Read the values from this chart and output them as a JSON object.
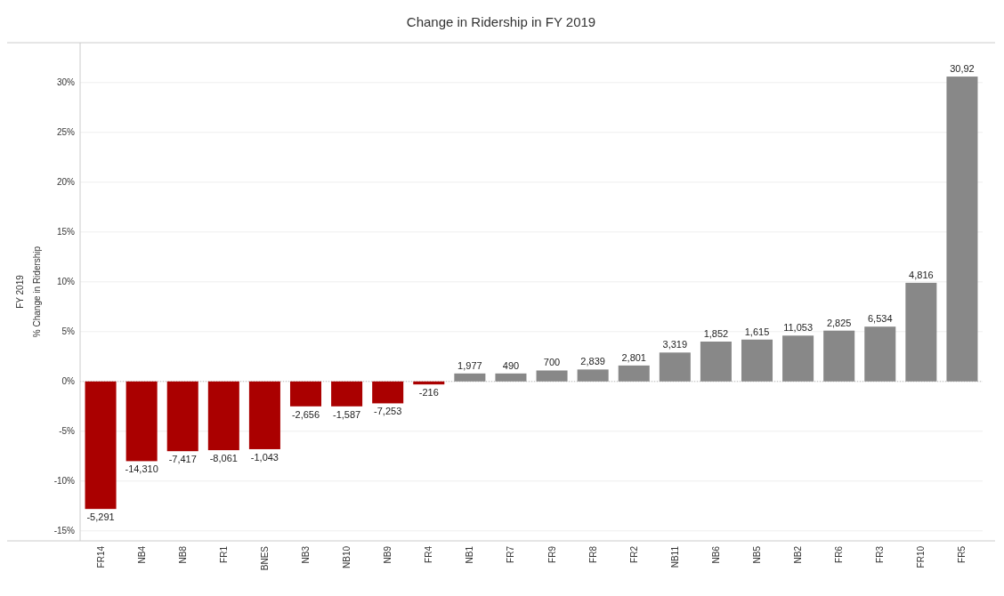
{
  "chart_data": {
    "type": "bar",
    "title": "Change in Ridership in FY 2019",
    "ylabel": "FY 2019\n% Change in Ridership",
    "categories": [
      "FR14",
      "NB4",
      "NB8",
      "FR1",
      "BNES",
      "NB3",
      "NB10",
      "NB9",
      "FR4",
      "NB1",
      "FR7",
      "FR9",
      "FR8",
      "FR2",
      "NB11",
      "NB6",
      "NB5",
      "NB2",
      "FR6",
      "FR3",
      "FR10",
      "FR5"
    ],
    "values": [
      -12.8,
      -8.0,
      -7.0,
      -6.9,
      -6.8,
      -2.5,
      -2.5,
      -2.2,
      -0.3,
      0.8,
      0.8,
      1.1,
      1.2,
      1.6,
      2.9,
      4.0,
      4.2,
      4.6,
      5.1,
      5.5,
      9.9,
      30.6
    ],
    "colors": [
      "#aa0000",
      "#aa0000",
      "#aa0000",
      "#aa0000",
      "#aa0000",
      "#aa0000",
      "#aa0000",
      "#aa0000",
      "#aa0000",
      "#888888",
      "#888888",
      "#888888",
      "#888888",
      "#888888",
      "#888888",
      "#888888",
      "#888888",
      "#888888",
      "#888888",
      "#888888",
      "#888888",
      "#888888"
    ],
    "annotations": [
      {
        "text": "-5,291",
        "x": "FR14",
        "y": -12.8
      },
      {
        "text": "-14,310",
        "x": "NB4",
        "y": -8.0
      },
      {
        "text": "-7,417",
        "x": "NB8",
        "y": -7.0
      },
      {
        "text": "-8,061",
        "x": "FR1",
        "y": -6.9
      },
      {
        "text": "-1,043",
        "x": "BNES",
        "y": -6.8
      },
      {
        "text": "-2,656",
        "x": "NB3",
        "y": -2.5
      },
      {
        "text": "-1,587",
        "x": "NB10",
        "y": -2.5
      },
      {
        "text": "-7,253",
        "x": "NB9",
        "y": -2.2
      },
      {
        "text": "-216",
        "x": "FR4",
        "y": -0.3
      },
      {
        "text": "1,977",
        "x": "NB1",
        "y": 0.8
      },
      {
        "text": "490",
        "x": "FR7",
        "y": 0.8
      },
      {
        "text": "700",
        "x": "FR9",
        "y": 1.1
      },
      {
        "text": "2,839",
        "x": "FR8",
        "y": 1.2
      },
      {
        "text": "2,801",
        "x": "FR2",
        "y": 1.6
      },
      {
        "text": "3,319",
        "x": "NB11",
        "y": 2.9
      },
      {
        "text": "1,852",
        "x": "NB6",
        "y": 4.0
      },
      {
        "text": "1,615",
        "x": "NB5",
        "y": 4.2
      },
      {
        "text": "11,053",
        "x": "NB2",
        "y": 4.6
      },
      {
        "text": "2,825",
        "x": "FR6",
        "y": 5.1
      },
      {
        "text": "6,534",
        "x": "FR3",
        "y": 5.5
      },
      {
        "text": "4,816",
        "x": "FR10",
        "y": 9.9
      },
      {
        "text": "30,92",
        "x": "FR5",
        "y": 30.6
      }
    ],
    "ylim": [
      -16,
      34
    ],
    "yticks": [
      {
        "value": -15,
        "label": "-15%"
      },
      {
        "value": -10,
        "label": "-10%"
      },
      {
        "value": -5,
        "label": "-5%"
      },
      {
        "value": 0,
        "label": "0%"
      },
      {
        "value": 5,
        "label": "5%"
      },
      {
        "value": 10,
        "label": "10%"
      },
      {
        "value": 15,
        "label": "15%"
      },
      {
        "value": 20,
        "label": "20%"
      },
      {
        "value": 25,
        "label": "25%"
      },
      {
        "value": 30,
        "label": "30%"
      }
    ],
    "ref_lines": [
      {
        "axis": "y",
        "value": 0,
        "color": "#bbbbbb",
        "line_style": "dotted"
      }
    ],
    "grid": "y"
  }
}
